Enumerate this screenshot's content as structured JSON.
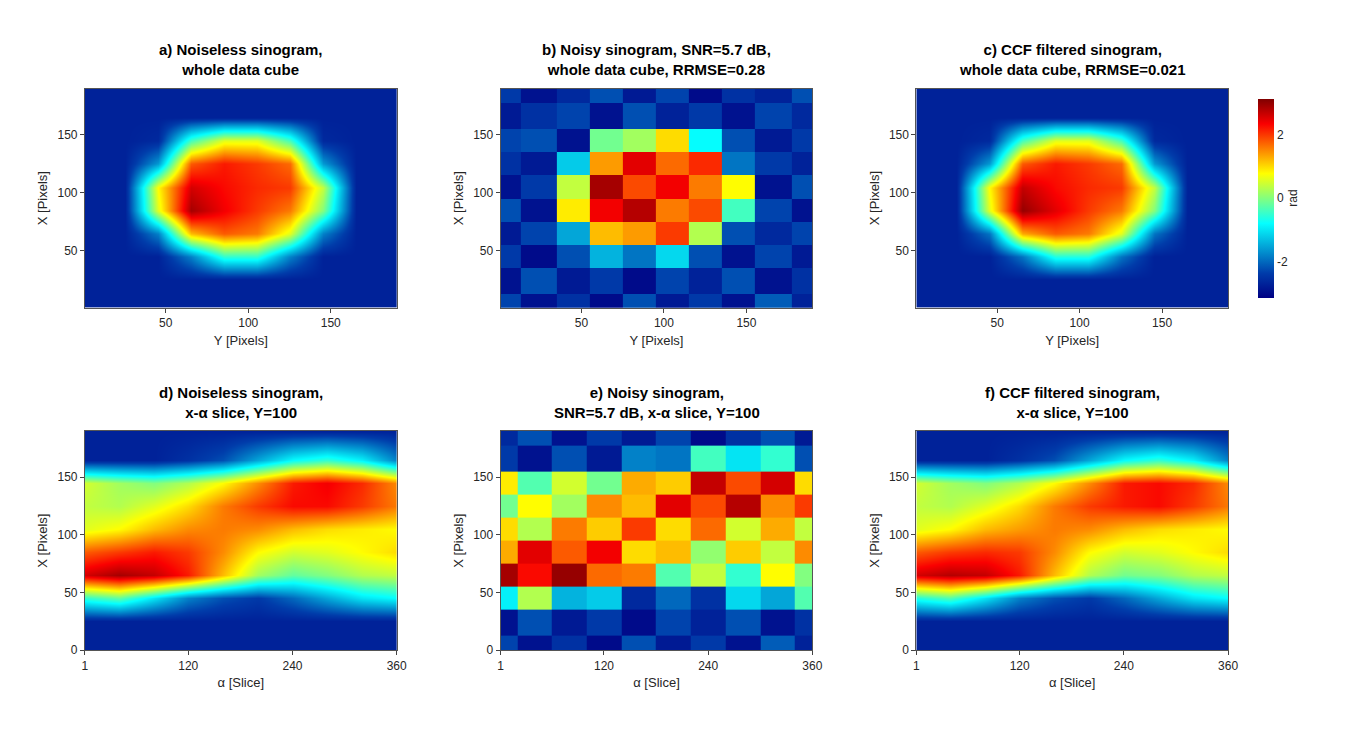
{
  "chart_data": [
    {
      "type": "heatmap",
      "title": [
        "a) Noiseless sinogram,",
        "whole data cube"
      ],
      "x_label": "Y [Pixels]",
      "y_label": "X [Pixels]",
      "x": [
        1,
        25,
        45,
        65,
        85,
        105,
        125,
        145,
        165,
        190
      ],
      "y": [
        1,
        25,
        45,
        65,
        85,
        105,
        125,
        145,
        165,
        190
      ],
      "xlim": [
        1,
        190
      ],
      "xticks": [
        50,
        100,
        150
      ],
      "ylim": [
        1,
        190
      ],
      "yticks": [
        50,
        100,
        150
      ],
      "cells": [
        [
          -2.7,
          -2.7,
          -2.7,
          -2.7,
          -2.7,
          -2.7,
          -2.7,
          -2.7,
          -2.7,
          -2.7
        ],
        [
          -2.7,
          -2.7,
          -2.7,
          -2.7,
          -2.7,
          -2.7,
          -2.7,
          -2.7,
          -2.7,
          -2.7
        ],
        [
          -2.7,
          -2.7,
          -2.7,
          -1.8,
          -0.5,
          -0.5,
          -1.8,
          -2.7,
          -2.7,
          -2.7
        ],
        [
          -2.7,
          -2.7,
          -1.8,
          1.2,
          1.8,
          1.6,
          0.6,
          -1.8,
          -2.7,
          -2.7
        ],
        [
          -2.7,
          -2.7,
          0.6,
          2.9,
          2.4,
          2.0,
          1.6,
          0.0,
          -2.7,
          -2.7
        ],
        [
          -2.7,
          -2.7,
          0.8,
          2.6,
          2.3,
          2.1,
          2.0,
          0.4,
          -2.7,
          -2.7
        ],
        [
          -2.7,
          -2.7,
          -1.6,
          1.8,
          2.2,
          2.0,
          1.7,
          -1.6,
          -2.7,
          -2.7
        ],
        [
          -2.7,
          -2.7,
          -2.6,
          -0.4,
          0.6,
          0.6,
          -0.4,
          -2.6,
          -2.7,
          -2.7
        ],
        [
          -2.7,
          -2.7,
          -2.7,
          -2.7,
          -2.7,
          -2.7,
          -2.7,
          -2.7,
          -2.7,
          -2.7
        ],
        [
          -2.7,
          -2.7,
          -2.7,
          -2.7,
          -2.7,
          -2.7,
          -2.7,
          -2.7,
          -2.7,
          -2.7
        ]
      ]
    },
    {
      "type": "heatmap",
      "title": [
        "b) Noisy sinogram, SNR=5.7 dB,",
        "whole data cube, RRMSE=0.28"
      ],
      "x_label": "Y [Pixels]",
      "y_label": "X [Pixels]",
      "x": [
        1,
        25,
        45,
        65,
        85,
        105,
        125,
        145,
        165,
        190
      ],
      "y": [
        1,
        25,
        45,
        65,
        85,
        105,
        125,
        145,
        165,
        190
      ],
      "xlim": [
        1,
        190
      ],
      "xticks": [
        50,
        100,
        150
      ],
      "ylim": [
        1,
        190
      ],
      "yticks": [
        50,
        100,
        150
      ],
      "cells": [
        [
          -2.3,
          -2.9,
          -2.5,
          -3.0,
          -2.2,
          -2.8,
          -2.4,
          -2.9,
          -2.1,
          -2.7
        ],
        [
          -2.9,
          -2.2,
          -2.8,
          -2.4,
          -3.0,
          -2.3,
          -2.7,
          -2.2,
          -2.9,
          -2.5
        ],
        [
          -2.4,
          -3.0,
          -2.2,
          -1.4,
          -1.9,
          -1.1,
          -2.2,
          -2.9,
          -2.3,
          -2.8
        ],
        [
          -2.8,
          -2.3,
          -1.5,
          1.2,
          1.4,
          2.0,
          0.3,
          -2.2,
          -2.6,
          -2.3
        ],
        [
          -2.2,
          -2.9,
          0.9,
          2.4,
          2.8,
          1.6,
          1.9,
          -0.4,
          -2.3,
          -2.9
        ],
        [
          -2.9,
          -2.4,
          0.4,
          2.9,
          1.9,
          2.4,
          1.6,
          0.8,
          -2.9,
          -2.2
        ],
        [
          -2.5,
          -2.8,
          -1.2,
          1.4,
          2.5,
          1.7,
          2.1,
          -1.9,
          -2.4,
          -2.7
        ],
        [
          -2.3,
          -2.2,
          -2.9,
          -0.1,
          0.2,
          1.0,
          -0.8,
          -2.2,
          -2.8,
          -2.4
        ],
        [
          -2.8,
          -2.5,
          -2.3,
          -2.9,
          -2.2,
          -2.7,
          -2.4,
          -2.9,
          -2.3,
          -2.6
        ],
        [
          -2.4,
          -2.9,
          -2.6,
          -2.2,
          -2.8,
          -2.3,
          -3.0,
          -2.5,
          -2.7,
          -2.2
        ]
      ]
    },
    {
      "type": "heatmap",
      "title": [
        "c) CCF filtered sinogram,",
        "whole data cube, RRMSE=0.021"
      ],
      "x_label": "Y [Pixels]",
      "y_label": "X [Pixels]",
      "x": [
        1,
        25,
        45,
        65,
        85,
        105,
        125,
        145,
        165,
        190
      ],
      "y": [
        1,
        25,
        45,
        65,
        85,
        105,
        125,
        145,
        165,
        190
      ],
      "xlim": [
        1,
        190
      ],
      "xticks": [
        50,
        100,
        150
      ],
      "ylim": [
        1,
        190
      ],
      "yticks": [
        50,
        100,
        150
      ],
      "cells": [
        [
          -2.7,
          -2.7,
          -2.7,
          -2.7,
          -2.7,
          -2.7,
          -2.7,
          -2.7,
          -2.7,
          -2.7
        ],
        [
          -2.7,
          -2.7,
          -2.7,
          -2.7,
          -2.7,
          -2.7,
          -2.7,
          -2.7,
          -2.7,
          -2.7
        ],
        [
          -2.7,
          -2.7,
          -2.7,
          -1.9,
          -0.6,
          -0.6,
          -1.9,
          -2.7,
          -2.7,
          -2.7
        ],
        [
          -2.7,
          -2.7,
          -1.9,
          1.3,
          1.8,
          1.6,
          0.6,
          -1.9,
          -2.7,
          -2.7
        ],
        [
          -2.7,
          -2.7,
          0.6,
          3.0,
          2.5,
          2.0,
          1.6,
          0.0,
          -2.7,
          -2.7
        ],
        [
          -2.7,
          -2.7,
          0.8,
          2.7,
          2.3,
          2.1,
          2.0,
          0.4,
          -2.7,
          -2.7
        ],
        [
          -2.7,
          -2.7,
          -1.6,
          1.8,
          2.2,
          2.0,
          1.7,
          -1.6,
          -2.7,
          -2.7
        ],
        [
          -2.7,
          -2.7,
          -2.6,
          -0.4,
          0.6,
          0.6,
          -0.4,
          -2.6,
          -2.7,
          -2.7
        ],
        [
          -2.7,
          -2.7,
          -2.7,
          -2.7,
          -2.7,
          -2.7,
          -2.7,
          -2.7,
          -2.7,
          -2.7
        ],
        [
          -2.7,
          -2.7,
          -2.7,
          -2.7,
          -2.7,
          -2.7,
          -2.7,
          -2.7,
          -2.7,
          -2.7
        ]
      ]
    },
    {
      "type": "heatmap",
      "title": [
        "d) Noiseless sinogram,",
        "x-α slice, Y=100"
      ],
      "x_label": "α [Slice]",
      "y_label": "X [Pixels]",
      "x": [
        1,
        40,
        80,
        120,
        160,
        200,
        240,
        280,
        320,
        360
      ],
      "y": [
        1,
        25,
        45,
        65,
        85,
        105,
        125,
        145,
        165,
        190
      ],
      "xlim": [
        1,
        360
      ],
      "xticks": [
        1,
        120,
        240,
        360
      ],
      "ylim": [
        0,
        190
      ],
      "yticks": [
        0,
        50,
        100,
        150
      ],
      "cells": [
        [
          -2.7,
          -2.7,
          -2.7,
          -2.7,
          -2.7,
          -2.7,
          -2.7,
          -2.7,
          -2.7,
          -2.7
        ],
        [
          -2.7,
          -2.7,
          -2.7,
          -2.7,
          -2.7,
          -2.7,
          -2.7,
          -2.7,
          -2.7,
          -2.7
        ],
        [
          -0.5,
          -0.2,
          -1.0,
          -1.8,
          -2.2,
          -2.4,
          -2.0,
          -1.5,
          -1.0,
          -0.8
        ],
        [
          2.6,
          2.9,
          2.7,
          2.2,
          1.2,
          0.2,
          -0.2,
          0.0,
          0.3,
          0.4
        ],
        [
          1.8,
          2.0,
          2.2,
          2.0,
          1.5,
          0.8,
          0.5,
          0.6,
          0.8,
          1.0
        ],
        [
          0.6,
          0.8,
          1.2,
          1.5,
          1.6,
          1.5,
          1.2,
          1.0,
          0.9,
          0.8
        ],
        [
          0.4,
          0.3,
          0.6,
          1.0,
          1.6,
          2.0,
          2.3,
          2.3,
          2.0,
          1.6
        ],
        [
          0.5,
          0.2,
          0.0,
          0.3,
          0.8,
          1.5,
          2.2,
          2.4,
          2.1,
          1.5
        ],
        [
          -2.7,
          -2.7,
          -2.7,
          -2.5,
          -2.2,
          -1.5,
          -0.8,
          -0.5,
          -0.9,
          -1.8
        ],
        [
          -2.7,
          -2.7,
          -2.7,
          -2.7,
          -2.7,
          -2.7,
          -2.7,
          -2.7,
          -2.7,
          -2.7
        ]
      ]
    },
    {
      "type": "heatmap",
      "title": [
        "e) Noisy sinogram,",
        "SNR=5.7 dB, x-α slice, Y=100"
      ],
      "x_label": "α [Slice]",
      "y_label": "X [Pixels]",
      "x": [
        1,
        40,
        80,
        120,
        160,
        200,
        240,
        280,
        320,
        360
      ],
      "y": [
        1,
        25,
        45,
        65,
        85,
        105,
        125,
        145,
        165,
        190
      ],
      "xlim": [
        1,
        360
      ],
      "xticks": [
        1,
        120,
        240,
        360
      ],
      "ylim": [
        0,
        190
      ],
      "yticks": [
        0,
        50,
        100,
        150
      ],
      "cells": [
        [
          -2.3,
          -2.9,
          -2.5,
          -3.0,
          -2.2,
          -2.8,
          -2.4,
          -2.9,
          -2.1,
          -2.7
        ],
        [
          -2.9,
          -2.2,
          -2.8,
          -2.4,
          -3.0,
          -2.3,
          -2.7,
          -2.2,
          -2.9,
          -2.5
        ],
        [
          -0.9,
          0.3,
          -1.4,
          -1.2,
          -2.6,
          -2.0,
          -2.5,
          -1.1,
          -1.5,
          -0.3
        ],
        [
          2.9,
          2.3,
          3.0,
          1.7,
          1.6,
          -0.3,
          0.4,
          -0.5,
          0.8,
          0.0
        ],
        [
          1.3,
          2.5,
          1.8,
          2.4,
          1.0,
          1.2,
          0.1,
          1.1,
          0.4,
          1.5
        ],
        [
          1.0,
          0.3,
          1.6,
          1.1,
          2.0,
          1.0,
          1.7,
          0.5,
          1.3,
          0.4
        ],
        [
          -0.1,
          0.8,
          0.2,
          1.5,
          1.2,
          2.5,
          1.9,
          2.8,
          1.5,
          2.0
        ],
        [
          0.9,
          -0.3,
          0.5,
          -0.1,
          1.3,
          1.1,
          2.7,
          1.9,
          2.6,
          1.0
        ],
        [
          -2.4,
          -2.9,
          -2.2,
          -2.8,
          -1.8,
          -1.9,
          -0.4,
          -1.0,
          -0.5,
          -2.2
        ],
        [
          -2.6,
          -2.2,
          -2.9,
          -2.4,
          -2.8,
          -2.3,
          -3.0,
          -2.5,
          -2.2,
          -2.8
        ]
      ]
    },
    {
      "type": "heatmap",
      "title": [
        "f) CCF filtered sinogram,",
        "x-α slice, Y=100"
      ],
      "x_label": "α [Slice]",
      "y_label": "X [Pixels]",
      "x": [
        1,
        40,
        80,
        120,
        160,
        200,
        240,
        280,
        320,
        360
      ],
      "y": [
        1,
        25,
        45,
        65,
        85,
        105,
        125,
        145,
        165,
        190
      ],
      "xlim": [
        1,
        360
      ],
      "xticks": [
        1,
        120,
        240,
        360
      ],
      "ylim": [
        0,
        190
      ],
      "yticks": [
        0,
        50,
        100,
        150
      ],
      "cells": [
        [
          -2.7,
          -2.7,
          -2.7,
          -2.7,
          -2.7,
          -2.7,
          -2.7,
          -2.7,
          -2.7,
          -2.7
        ],
        [
          -2.7,
          -2.7,
          -2.7,
          -2.7,
          -2.7,
          -2.7,
          -2.7,
          -2.7,
          -2.7,
          -2.7
        ],
        [
          -0.6,
          -0.3,
          -1.0,
          -1.8,
          -2.2,
          -2.4,
          -2.0,
          -1.5,
          -1.0,
          -0.8
        ],
        [
          2.6,
          2.8,
          2.7,
          2.2,
          1.2,
          0.3,
          -0.1,
          0.0,
          0.3,
          0.4
        ],
        [
          1.8,
          2.0,
          2.1,
          2.0,
          1.5,
          0.8,
          0.5,
          0.6,
          0.8,
          1.0
        ],
        [
          0.6,
          0.8,
          1.2,
          1.4,
          1.6,
          1.5,
          1.2,
          1.0,
          0.9,
          0.8
        ],
        [
          0.4,
          0.3,
          0.6,
          1.0,
          1.6,
          2.0,
          2.2,
          2.3,
          2.0,
          1.6
        ],
        [
          0.5,
          0.2,
          0.0,
          0.3,
          0.8,
          1.5,
          2.2,
          2.3,
          2.1,
          1.5
        ],
        [
          -2.7,
          -2.7,
          -2.7,
          -2.5,
          -2.2,
          -1.5,
          -0.8,
          -0.5,
          -0.9,
          -1.8
        ],
        [
          -2.7,
          -2.7,
          -2.7,
          -2.7,
          -2.7,
          -2.7,
          -2.7,
          -2.7,
          -2.7,
          -2.7
        ]
      ]
    }
  ],
  "colorbar": {
    "range": [
      -3.14,
      3.14
    ],
    "ticks": [
      -2,
      0,
      2
    ],
    "title": "rad"
  }
}
